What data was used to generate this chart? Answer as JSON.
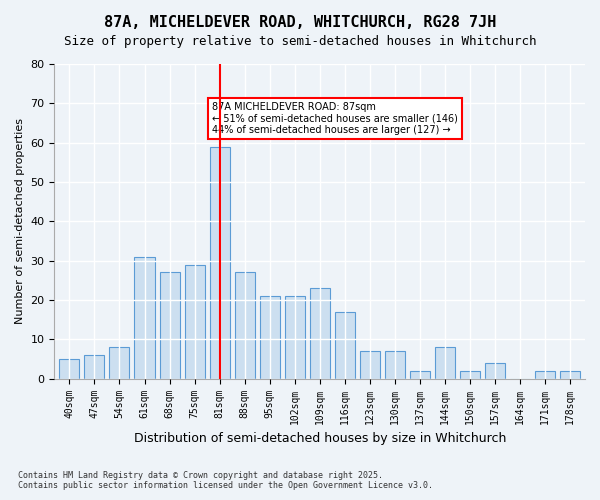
{
  "title": "87A, MICHELDEVER ROAD, WHITCHURCH, RG28 7JH",
  "subtitle": "Size of property relative to semi-detached houses in Whitchurch",
  "xlabel": "Distribution of semi-detached houses by size in Whitchurch",
  "ylabel": "Number of semi-detached properties",
  "categories": [
    "40sqm",
    "47sqm",
    "54sqm",
    "61sqm",
    "68sqm",
    "75sqm",
    "81sqm",
    "88sqm",
    "95sqm",
    "102sqm",
    "109sqm",
    "116sqm",
    "123sqm",
    "130sqm",
    "137sqm",
    "144sqm",
    "150sqm",
    "157sqm",
    "164sqm",
    "171sqm",
    "178sqm"
  ],
  "values": [
    5,
    6,
    8,
    31,
    27,
    29,
    59,
    27,
    21,
    21,
    23,
    17,
    7,
    7,
    2,
    8,
    2,
    4,
    0,
    2,
    2
  ],
  "bar_color": "#ccdff0",
  "bar_edge_color": "#5b9bd5",
  "highlight_index": 6,
  "highlight_color": "#ff0000",
  "property_sqm": 87,
  "property_label": "87A MICHELDEVER ROAD: 87sqm",
  "pct_smaller": 51,
  "n_smaller": 146,
  "pct_larger": 44,
  "n_larger": 127,
  "ylim": [
    0,
    80
  ],
  "yticks": [
    0,
    10,
    20,
    30,
    40,
    50,
    60,
    70,
    80
  ],
  "bg_color": "#eef3f8",
  "grid_color": "#ffffff",
  "annotation_box_color": "#ff0000",
  "footer": "Contains HM Land Registry data © Crown copyright and database right 2025.\nContains public sector information licensed under the Open Government Licence v3.0."
}
